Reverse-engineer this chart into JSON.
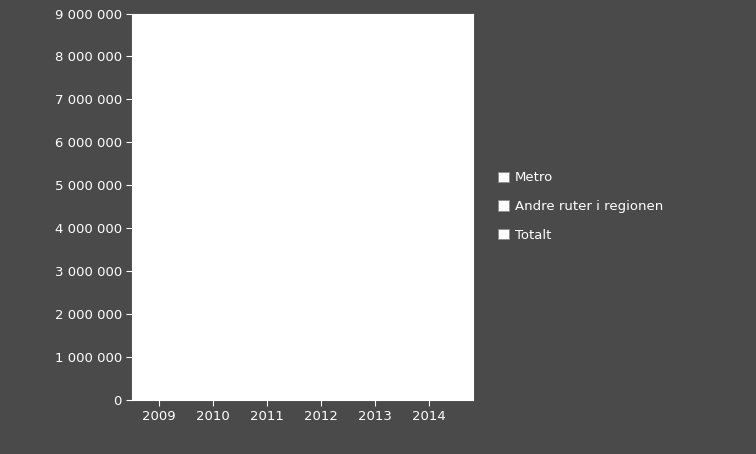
{
  "years": [
    2009,
    2010,
    2011,
    2012,
    2013,
    2014
  ],
  "legend_labels": [
    "Metro",
    "Andre ruter i regionen",
    "Totalt"
  ],
  "legend_colors": [
    "#ffffff",
    "#ffffff",
    "#ffffff"
  ],
  "ylim": [
    0,
    9000000
  ],
  "yticks": [
    0,
    1000000,
    2000000,
    3000000,
    4000000,
    5000000,
    6000000,
    7000000,
    8000000,
    9000000
  ],
  "ytick_labels": [
    "0",
    "1 000 000",
    "2 000 000",
    "3 000 000",
    "4 000 000",
    "5 000 000",
    "6 000 000",
    "7 000 000",
    "8 000 000",
    "9 000 000"
  ],
  "background_color": "#4a4a4a",
  "plot_bg_color": "#ffffff",
  "text_color": "#ffffff",
  "tick_color": "#ffffff",
  "font_size": 9.5,
  "xlim_left": 2008.5,
  "xlim_right": 2014.8
}
